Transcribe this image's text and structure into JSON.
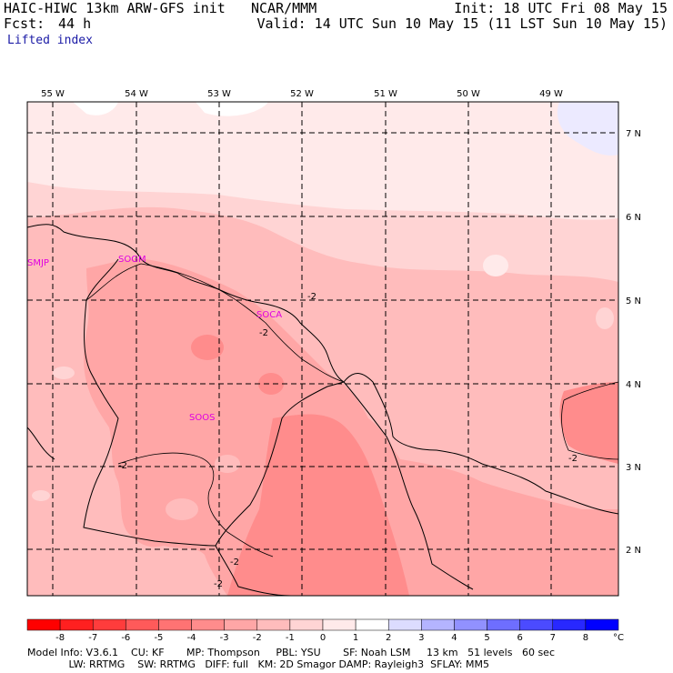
{
  "header": {
    "model": "HAIC-HIWC 13km ARW-GFS init",
    "org": "NCAR/MMM",
    "fcst_label": "Fcst:",
    "fcst_value": "44 h",
    "field": "Lifted index",
    "init": "Init: 18 UTC Fri 08 May 15",
    "valid": "Valid: 14 UTC Sun 10 May 15 (11 LST Sun 10 May 15)"
  },
  "axes": {
    "lon_labels": [
      "55 W",
      "54 W",
      "53 W",
      "52 W",
      "51 W",
      "50 W",
      "49 W"
    ],
    "lat_labels": [
      "7 N",
      "6 N",
      "5 N",
      "4 N",
      "3 N",
      "2 N"
    ]
  },
  "stations": [
    "SMJP",
    "SOGM",
    "SOCA",
    "SOOS"
  ],
  "contour_labels": [
    "-2",
    "-2",
    "-2",
    "-2",
    "-2",
    "-2"
  ],
  "colorbar": {
    "ticks": [
      "-8",
      "-7",
      "-6",
      "-5",
      "-4",
      "-3",
      "-2",
      "-1",
      "0",
      "1",
      "2",
      "3",
      "4",
      "5",
      "6",
      "7",
      "8"
    ],
    "unit": "°C",
    "colors": [
      "#ff0000",
      "#ff2020",
      "#ff3c3c",
      "#ff5a5a",
      "#ff7373",
      "#ff8c8c",
      "#ffa6a6",
      "#ffbcbc",
      "#ffd4d4",
      "#ffeaea",
      "#ffffff",
      "#dcdcff",
      "#b4b4ff",
      "#9191ff",
      "#6e6eff",
      "#4b4bff",
      "#2828ff",
      "#0000ff"
    ]
  },
  "footer": {
    "line1": "Model Info: V3.6.1    CU: KF       MP: Thompson     PBL: YSU       SF: Noah LSM     13 km   51 levels   60 sec",
    "line2": "             LW: RRTMG    SW: RRTMG   DIFF: full   KM: 2D Smagor DAMP: Rayleigh3  SFLAY: MM5"
  }
}
